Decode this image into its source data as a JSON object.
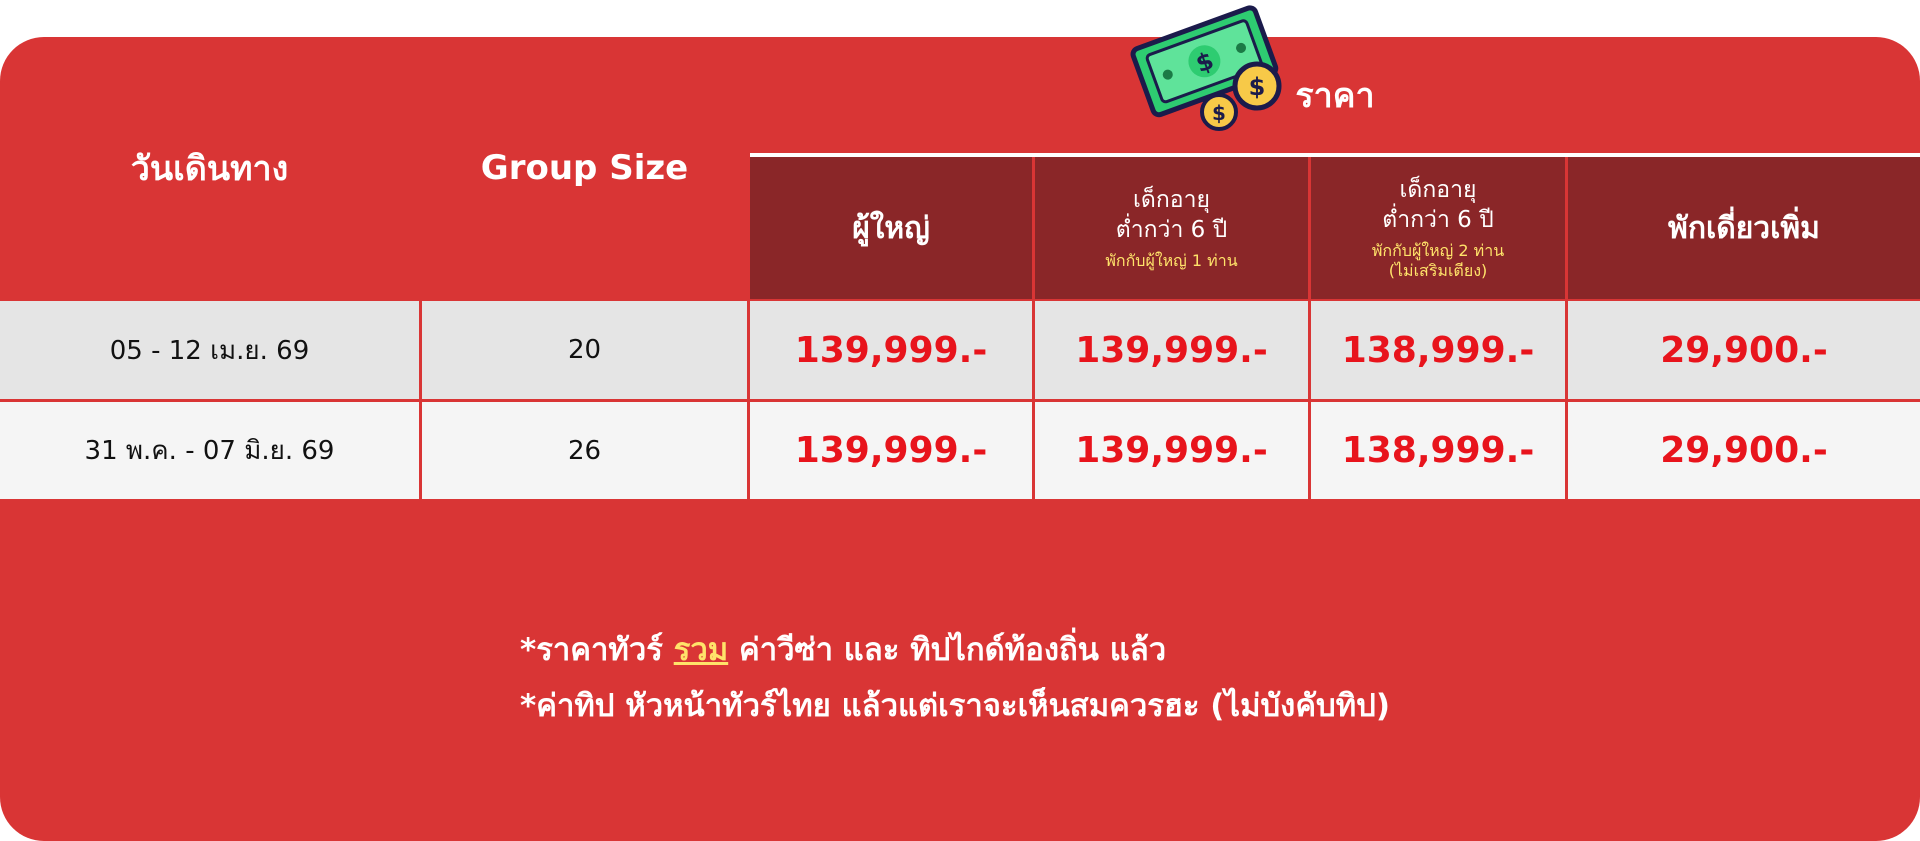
{
  "header": {
    "date_col": "วันเดินทาง",
    "group_col": "Group Size",
    "price_group": "ราคา",
    "sub": [
      {
        "title": "ผู้ใหญ่"
      },
      {
        "title_l1": "เด็กอายุ",
        "title_l2": "ต่ำกว่า 6 ปี",
        "note": "พักกับผู้ใหญ่ 1 ท่าน"
      },
      {
        "title_l1": "เด็กอายุ",
        "title_l2": "ต่ำกว่า 6 ปี",
        "note": "พักกับผู้ใหญ่ 2 ท่าน",
        "note2": "(ไม่เสริมเตียง)"
      },
      {
        "title": "พักเดี่ยวเพิ่ม"
      }
    ]
  },
  "rows": [
    {
      "date": "05 - 12 เม.ย. 69",
      "group": "20",
      "adult": "139,999.-",
      "child1": "139,999.-",
      "child2": "138,999.-",
      "single": "29,900.-"
    },
    {
      "date": "31 พ.ค. - 07 มิ.ย. 69",
      "group": "26",
      "adult": "139,999.-",
      "child1": "139,999.-",
      "child2": "138,999.-",
      "single": "29,900.-"
    }
  ],
  "notes": {
    "line1_pre": "*ราคาทัวร์ ",
    "line1_hl": "รวม",
    "line1_post": " ค่าวีซ่า และ ทิปไกด์ท้องถิ่น แล้ว",
    "line2": "*ค่าทิป หัวหน้าทัวร์ไทย แล้วแต่เราจะเห็นสมควรฮะ (ไม่บังคับทิป)"
  },
  "icons": {
    "money": "money-bill-coins-icon"
  },
  "colors": {
    "header": "#d93535",
    "subheader": "#8a2628",
    "price": "#e8141c",
    "highlight": "#ffe36a"
  }
}
